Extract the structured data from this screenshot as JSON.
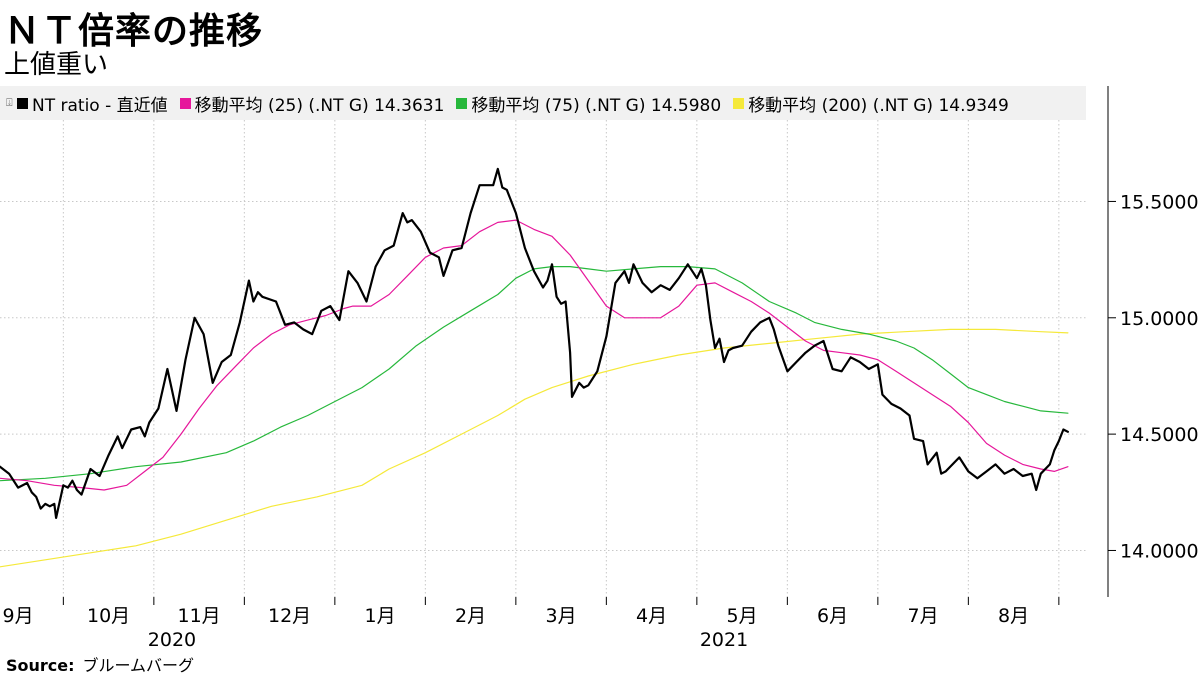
{
  "title": "ＮＴ倍率の推移",
  "subtitle": "上値重い",
  "source_label": "Source:",
  "source_value": "ブルームバーグ",
  "colors": {
    "nt": "#000000",
    "ma25": "#e6179b",
    "ma75": "#27b83c",
    "ma200": "#f5e93a",
    "grid": "#c8c8c8",
    "legend_bg": "#f1f1f1"
  },
  "chart_data": {
    "type": "line",
    "title": "ＮＴ倍率の推移",
    "subtitle": "上値重い",
    "ylim": [
      13.8,
      15.85
    ],
    "y_ticks": [
      14.0,
      14.5,
      15.0,
      15.5
    ],
    "y_tick_labels": [
      "14.0000",
      "14.5000",
      "15.0000",
      "15.5000"
    ],
    "grid": true,
    "legend_position": "top",
    "x_range": [
      0,
      12.0
    ],
    "x_axis_months": [
      {
        "x": 0.2,
        "label": "9月"
      },
      {
        "x": 1.2,
        "label": "10月"
      },
      {
        "x": 2.2,
        "label": "11月"
      },
      {
        "x": 3.2,
        "label": "12月"
      },
      {
        "x": 4.2,
        "label": "1月"
      },
      {
        "x": 5.2,
        "label": "2月"
      },
      {
        "x": 6.2,
        "label": "3月"
      },
      {
        "x": 7.2,
        "label": "4月"
      },
      {
        "x": 8.2,
        "label": "5月"
      },
      {
        "x": 9.2,
        "label": "6月"
      },
      {
        "x": 10.2,
        "label": "7月"
      },
      {
        "x": 11.2,
        "label": "8月"
      }
    ],
    "x_axis_years": [
      {
        "x": 1.9,
        "label": "2020"
      },
      {
        "x": 8.0,
        "label": "2021"
      }
    ],
    "series": [
      {
        "name": "NT ratio - 直近値",
        "legend": "NT ratio - 直近値",
        "color": "#000000",
        "width": 2.2,
        "points": [
          [
            0.0,
            14.36
          ],
          [
            0.1,
            14.33
          ],
          [
            0.2,
            14.27
          ],
          [
            0.3,
            14.29
          ],
          [
            0.35,
            14.25
          ],
          [
            0.4,
            14.23
          ],
          [
            0.45,
            14.18
          ],
          [
            0.5,
            14.2
          ],
          [
            0.55,
            14.19
          ],
          [
            0.6,
            14.2
          ],
          [
            0.62,
            14.14
          ],
          [
            0.7,
            14.28
          ],
          [
            0.75,
            14.27
          ],
          [
            0.8,
            14.3
          ],
          [
            0.85,
            14.26
          ],
          [
            0.9,
            14.24
          ],
          [
            1.0,
            14.35
          ],
          [
            1.1,
            14.32
          ],
          [
            1.2,
            14.41
          ],
          [
            1.3,
            14.49
          ],
          [
            1.35,
            14.44
          ],
          [
            1.45,
            14.52
          ],
          [
            1.55,
            14.53
          ],
          [
            1.6,
            14.49
          ],
          [
            1.65,
            14.55
          ],
          [
            1.75,
            14.61
          ],
          [
            1.85,
            14.78
          ],
          [
            1.95,
            14.6
          ],
          [
            2.05,
            14.82
          ],
          [
            2.15,
            15.0
          ],
          [
            2.25,
            14.93
          ],
          [
            2.35,
            14.72
          ],
          [
            2.45,
            14.81
          ],
          [
            2.55,
            14.84
          ],
          [
            2.65,
            14.98
          ],
          [
            2.75,
            15.16
          ],
          [
            2.8,
            15.07
          ],
          [
            2.85,
            15.11
          ],
          [
            2.9,
            15.09
          ],
          [
            3.05,
            15.07
          ],
          [
            3.15,
            14.97
          ],
          [
            3.25,
            14.98
          ],
          [
            3.35,
            14.95
          ],
          [
            3.45,
            14.93
          ],
          [
            3.55,
            15.03
          ],
          [
            3.65,
            15.05
          ],
          [
            3.75,
            14.99
          ],
          [
            3.85,
            15.2
          ],
          [
            3.95,
            15.15
          ],
          [
            4.05,
            15.07
          ],
          [
            4.15,
            15.22
          ],
          [
            4.25,
            15.29
          ],
          [
            4.35,
            15.31
          ],
          [
            4.45,
            15.45
          ],
          [
            4.5,
            15.41
          ],
          [
            4.55,
            15.42
          ],
          [
            4.65,
            15.37
          ],
          [
            4.75,
            15.28
          ],
          [
            4.85,
            15.26
          ],
          [
            4.9,
            15.18
          ],
          [
            5.0,
            15.29
          ],
          [
            5.1,
            15.3
          ],
          [
            5.2,
            15.45
          ],
          [
            5.3,
            15.57
          ],
          [
            5.45,
            15.57
          ],
          [
            5.5,
            15.64
          ],
          [
            5.55,
            15.56
          ],
          [
            5.6,
            15.55
          ],
          [
            5.7,
            15.45
          ],
          [
            5.8,
            15.3
          ],
          [
            5.9,
            15.2
          ],
          [
            6.0,
            15.13
          ],
          [
            6.05,
            15.16
          ],
          [
            6.1,
            15.23
          ],
          [
            6.15,
            15.09
          ],
          [
            6.2,
            15.06
          ],
          [
            6.25,
            15.07
          ],
          [
            6.3,
            14.85
          ],
          [
            6.32,
            14.66
          ],
          [
            6.4,
            14.72
          ],
          [
            6.45,
            14.7
          ],
          [
            6.5,
            14.71
          ],
          [
            6.6,
            14.77
          ],
          [
            6.7,
            14.92
          ],
          [
            6.8,
            15.15
          ],
          [
            6.9,
            15.2
          ],
          [
            6.95,
            15.15
          ],
          [
            7.0,
            15.23
          ],
          [
            7.1,
            15.15
          ],
          [
            7.2,
            15.11
          ],
          [
            7.3,
            15.14
          ],
          [
            7.4,
            15.12
          ],
          [
            7.5,
            15.17
          ],
          [
            7.6,
            15.23
          ],
          [
            7.7,
            15.17
          ],
          [
            7.75,
            15.21
          ],
          [
            7.8,
            15.14
          ],
          [
            7.85,
            14.99
          ],
          [
            7.9,
            14.87
          ],
          [
            7.95,
            14.91
          ],
          [
            8.0,
            14.81
          ],
          [
            8.05,
            14.86
          ],
          [
            8.1,
            14.87
          ],
          [
            8.2,
            14.88
          ],
          [
            8.3,
            14.94
          ],
          [
            8.4,
            14.98
          ],
          [
            8.5,
            15.0
          ],
          [
            8.55,
            14.95
          ],
          [
            8.6,
            14.88
          ],
          [
            8.7,
            14.77
          ],
          [
            8.8,
            14.81
          ],
          [
            8.9,
            14.85
          ],
          [
            9.0,
            14.88
          ],
          [
            9.1,
            14.9
          ],
          [
            9.2,
            14.78
          ],
          [
            9.3,
            14.77
          ],
          [
            9.4,
            14.83
          ],
          [
            9.5,
            14.81
          ],
          [
            9.6,
            14.78
          ],
          [
            9.7,
            14.8
          ],
          [
            9.75,
            14.67
          ],
          [
            9.85,
            14.63
          ],
          [
            9.95,
            14.61
          ],
          [
            10.05,
            14.58
          ],
          [
            10.1,
            14.48
          ],
          [
            10.2,
            14.47
          ],
          [
            10.25,
            14.37
          ],
          [
            10.35,
            14.42
          ],
          [
            10.4,
            14.33
          ],
          [
            10.45,
            14.34
          ],
          [
            10.55,
            14.38
          ],
          [
            10.6,
            14.4
          ],
          [
            10.7,
            14.34
          ],
          [
            10.8,
            14.31
          ],
          [
            10.9,
            14.34
          ],
          [
            11.0,
            14.37
          ],
          [
            11.1,
            14.33
          ],
          [
            11.2,
            14.35
          ],
          [
            11.3,
            14.32
          ],
          [
            11.4,
            14.33
          ],
          [
            11.45,
            14.26
          ],
          [
            11.5,
            14.33
          ],
          [
            11.6,
            14.37
          ],
          [
            11.65,
            14.43
          ],
          [
            11.7,
            14.47
          ],
          [
            11.75,
            14.52
          ],
          [
            11.8,
            14.51
          ]
        ]
      },
      {
        "name": "移動平均 (25) (.NT G) 14.3631",
        "legend": "移動平均 (25) (.NT G) 14.3631",
        "color": "#e6179b",
        "width": 1.2,
        "points": [
          [
            0.0,
            14.31
          ],
          [
            0.3,
            14.3
          ],
          [
            0.6,
            14.28
          ],
          [
            0.9,
            14.27
          ],
          [
            1.15,
            14.26
          ],
          [
            1.4,
            14.28
          ],
          [
            1.6,
            14.34
          ],
          [
            1.8,
            14.4
          ],
          [
            2.0,
            14.5
          ],
          [
            2.2,
            14.61
          ],
          [
            2.4,
            14.71
          ],
          [
            2.6,
            14.79
          ],
          [
            2.8,
            14.87
          ],
          [
            3.0,
            14.93
          ],
          [
            3.2,
            14.97
          ],
          [
            3.4,
            14.99
          ],
          [
            3.6,
            15.01
          ],
          [
            3.8,
            15.04
          ],
          [
            3.9,
            15.05
          ],
          [
            4.1,
            15.05
          ],
          [
            4.3,
            15.1
          ],
          [
            4.5,
            15.18
          ],
          [
            4.7,
            15.26
          ],
          [
            4.9,
            15.3
          ],
          [
            5.1,
            15.31
          ],
          [
            5.3,
            15.37
          ],
          [
            5.5,
            15.41
          ],
          [
            5.7,
            15.42
          ],
          [
            5.9,
            15.38
          ],
          [
            6.1,
            15.35
          ],
          [
            6.3,
            15.27
          ],
          [
            6.5,
            15.16
          ],
          [
            6.7,
            15.05
          ],
          [
            6.9,
            15.0
          ],
          [
            7.1,
            15.0
          ],
          [
            7.3,
            15.0
          ],
          [
            7.5,
            15.05
          ],
          [
            7.7,
            15.14
          ],
          [
            7.9,
            15.15
          ],
          [
            8.1,
            15.11
          ],
          [
            8.3,
            15.07
          ],
          [
            8.5,
            15.02
          ],
          [
            8.7,
            14.96
          ],
          [
            8.9,
            14.9
          ],
          [
            9.1,
            14.86
          ],
          [
            9.3,
            14.85
          ],
          [
            9.5,
            14.84
          ],
          [
            9.7,
            14.82
          ],
          [
            9.9,
            14.77
          ],
          [
            10.1,
            14.72
          ],
          [
            10.3,
            14.67
          ],
          [
            10.5,
            14.62
          ],
          [
            10.7,
            14.55
          ],
          [
            10.9,
            14.46
          ],
          [
            11.1,
            14.41
          ],
          [
            11.3,
            14.37
          ],
          [
            11.5,
            14.35
          ],
          [
            11.65,
            14.34
          ],
          [
            11.8,
            14.36
          ]
        ]
      },
      {
        "name": "移動平均 (75) (.NT G) 14.5980",
        "legend": "移動平均 (75) (.NT G) 14.5980",
        "color": "#27b83c",
        "width": 1.2,
        "points": [
          [
            0.0,
            14.3
          ],
          [
            0.5,
            14.31
          ],
          [
            1.0,
            14.33
          ],
          [
            1.5,
            14.36
          ],
          [
            2.0,
            14.38
          ],
          [
            2.5,
            14.42
          ],
          [
            2.8,
            14.47
          ],
          [
            3.1,
            14.53
          ],
          [
            3.4,
            14.58
          ],
          [
            3.7,
            14.64
          ],
          [
            4.0,
            14.7
          ],
          [
            4.3,
            14.78
          ],
          [
            4.6,
            14.88
          ],
          [
            4.9,
            14.96
          ],
          [
            5.2,
            15.03
          ],
          [
            5.5,
            15.1
          ],
          [
            5.7,
            15.17
          ],
          [
            5.9,
            15.21
          ],
          [
            6.1,
            15.22
          ],
          [
            6.3,
            15.22
          ],
          [
            6.5,
            15.21
          ],
          [
            6.7,
            15.2
          ],
          [
            7.0,
            15.21
          ],
          [
            7.3,
            15.22
          ],
          [
            7.6,
            15.22
          ],
          [
            7.9,
            15.21
          ],
          [
            8.2,
            15.15
          ],
          [
            8.5,
            15.07
          ],
          [
            8.8,
            15.02
          ],
          [
            9.0,
            14.98
          ],
          [
            9.3,
            14.95
          ],
          [
            9.6,
            14.93
          ],
          [
            9.9,
            14.9
          ],
          [
            10.1,
            14.87
          ],
          [
            10.3,
            14.82
          ],
          [
            10.5,
            14.76
          ],
          [
            10.7,
            14.7
          ],
          [
            10.9,
            14.67
          ],
          [
            11.1,
            14.64
          ],
          [
            11.3,
            14.62
          ],
          [
            11.5,
            14.6
          ],
          [
            11.8,
            14.59
          ]
        ]
      },
      {
        "name": "移動平均 (200) (.NT G) 14.9349",
        "legend": "移動平均 (200) (.NT G) 14.9349",
        "color": "#f5e93a",
        "width": 1.2,
        "points": [
          [
            0.0,
            13.93
          ],
          [
            0.5,
            13.96
          ],
          [
            1.0,
            13.99
          ],
          [
            1.5,
            14.02
          ],
          [
            2.0,
            14.07
          ],
          [
            2.5,
            14.13
          ],
          [
            3.0,
            14.19
          ],
          [
            3.5,
            14.23
          ],
          [
            4.0,
            14.28
          ],
          [
            4.3,
            14.35
          ],
          [
            4.7,
            14.42
          ],
          [
            5.1,
            14.5
          ],
          [
            5.5,
            14.58
          ],
          [
            5.8,
            14.65
          ],
          [
            6.1,
            14.7
          ],
          [
            6.5,
            14.75
          ],
          [
            7.0,
            14.8
          ],
          [
            7.5,
            14.84
          ],
          [
            8.0,
            14.87
          ],
          [
            8.5,
            14.89
          ],
          [
            9.0,
            14.91
          ],
          [
            9.5,
            14.93
          ],
          [
            10.0,
            14.94
          ],
          [
            10.5,
            14.95
          ],
          [
            11.0,
            14.95
          ],
          [
            11.5,
            14.94
          ],
          [
            11.8,
            14.935
          ]
        ]
      }
    ]
  }
}
